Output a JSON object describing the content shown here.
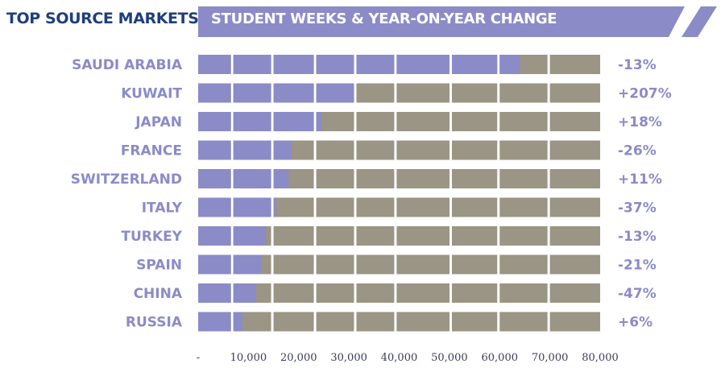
{
  "header": {
    "left_title": "TOP SOURCE MARKETS",
    "right_title": "STUDENT WEEKS & YEAR-ON-YEAR CHANGE"
  },
  "colors": {
    "accent": "#8b8bc8",
    "track": "#9a9585",
    "title_navy": "#1f3e7c",
    "label": "#8b8bc8",
    "tick": "#3b3b5c"
  },
  "chart_data": {
    "type": "bar",
    "orientation": "horizontal",
    "title": "STUDENT WEEKS & YEAR-ON-YEAR CHANGE",
    "categories": [
      "SAUDI ARABIA",
      "KUWAIT",
      "JAPAN",
      "FRANCE",
      "SWITZERLAND",
      "ITALY",
      "TURKEY",
      "SPAIN",
      "CHINA",
      "RUSSIA"
    ],
    "values": [
      64000,
      31500,
      24500,
      18500,
      18000,
      15500,
      13500,
      12500,
      11500,
      8800
    ],
    "changes": [
      "-13%",
      "+207%",
      "+18%",
      "-26%",
      "+11%",
      "-37%",
      "-13%",
      "-21%",
      "-47%",
      "+6%"
    ],
    "xlim": [
      0,
      80000
    ],
    "x_ticks": [
      "-",
      "10,000",
      "20,000",
      "30,000",
      "40,000",
      "50,000",
      "60,000",
      "70,000",
      "80,000"
    ],
    "grid": true
  }
}
